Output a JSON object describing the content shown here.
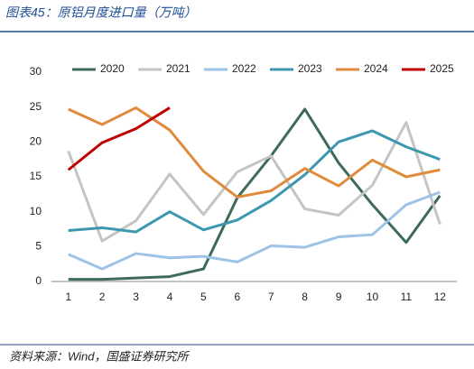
{
  "chart_data": {
    "type": "line",
    "title": "图表45：原铝月度进口量（万吨）",
    "source": "资料来源：Wind，国盛证券研究所",
    "categories": [
      "1",
      "2",
      "3",
      "4",
      "5",
      "6",
      "7",
      "8",
      "9",
      "10",
      "11",
      "12"
    ],
    "series": [
      {
        "name": "2020",
        "color": "#3d6b58",
        "values": [
          0.3,
          0.3,
          0.5,
          0.7,
          1.8,
          12.0,
          18.0,
          24.7,
          17.0,
          11.0,
          5.6,
          12.3
        ]
      },
      {
        "name": "2021",
        "color": "#c4c4c4",
        "values": [
          18.7,
          5.8,
          8.7,
          15.4,
          9.6,
          15.7,
          18.0,
          10.4,
          9.5,
          13.8,
          22.8,
          8.2
        ]
      },
      {
        "name": "2022",
        "color": "#9dc3e6",
        "values": [
          3.9,
          1.8,
          4.0,
          3.4,
          3.6,
          2.8,
          5.1,
          4.9,
          6.4,
          6.7,
          11.0,
          12.8
        ]
      },
      {
        "name": "2023",
        "color": "#3d97b0",
        "values": [
          7.3,
          7.7,
          7.1,
          10.0,
          7.4,
          8.8,
          11.6,
          15.3,
          20.0,
          21.6,
          19.3,
          17.5
        ]
      },
      {
        "name": "2024",
        "color": "#e08a3c",
        "values": [
          24.7,
          22.5,
          24.9,
          21.7,
          15.8,
          12.1,
          13.0,
          16.2,
          13.7,
          17.4,
          15.0,
          16.0
        ]
      },
      {
        "name": "2025",
        "color": "#c00000",
        "values": [
          16.0,
          19.9,
          21.9,
          24.9,
          null,
          null,
          null,
          null,
          null,
          null,
          null,
          null
        ]
      }
    ],
    "ylim": [
      0,
      30
    ],
    "yticks": [
      0,
      5,
      10,
      15,
      20,
      25,
      30
    ],
    "grid": false,
    "legend": "top"
  }
}
